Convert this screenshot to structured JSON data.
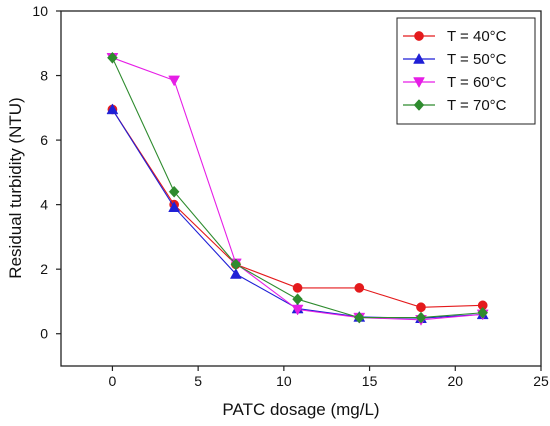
{
  "chart_data": {
    "type": "line",
    "title": "",
    "xlabel": "PATC dosage (mg/L)",
    "ylabel": "Residual turbidity (NTU)",
    "xlim": [
      -3,
      25
    ],
    "ylim": [
      -1,
      10
    ],
    "xticks": [
      0,
      5,
      10,
      15,
      20,
      25
    ],
    "yticks": [
      0,
      2,
      4,
      6,
      8,
      10
    ],
    "grid": false,
    "legend_position": "top-right",
    "series": [
      {
        "name": "T = 40°C",
        "color": "#e41a1c",
        "marker": "circle",
        "x": [
          0,
          3.6,
          7.2,
          10.8,
          14.4,
          18,
          21.6
        ],
        "y": [
          6.95,
          4.0,
          2.15,
          1.42,
          1.42,
          0.82,
          0.88
        ]
      },
      {
        "name": "T = 50°C",
        "color": "#1f1fd6",
        "marker": "triangle-up",
        "x": [
          0,
          3.6,
          7.2,
          10.8,
          14.4,
          18,
          21.6
        ],
        "y": [
          6.95,
          3.92,
          1.85,
          0.78,
          0.52,
          0.48,
          0.6
        ]
      },
      {
        "name": "T = 60°C",
        "color": "#e61ee6",
        "marker": "triangle-down",
        "x": [
          0,
          3.6,
          7.2,
          10.8,
          14.4,
          18,
          21.6
        ],
        "y": [
          8.55,
          7.85,
          2.18,
          0.75,
          0.5,
          0.43,
          0.6
        ]
      },
      {
        "name": "T = 70°C",
        "color": "#2e8b2e",
        "marker": "diamond",
        "x": [
          0,
          3.6,
          7.2,
          10.8,
          14.4,
          18,
          21.6
        ],
        "y": [
          8.55,
          4.4,
          2.15,
          1.07,
          0.5,
          0.5,
          0.65
        ]
      }
    ]
  }
}
